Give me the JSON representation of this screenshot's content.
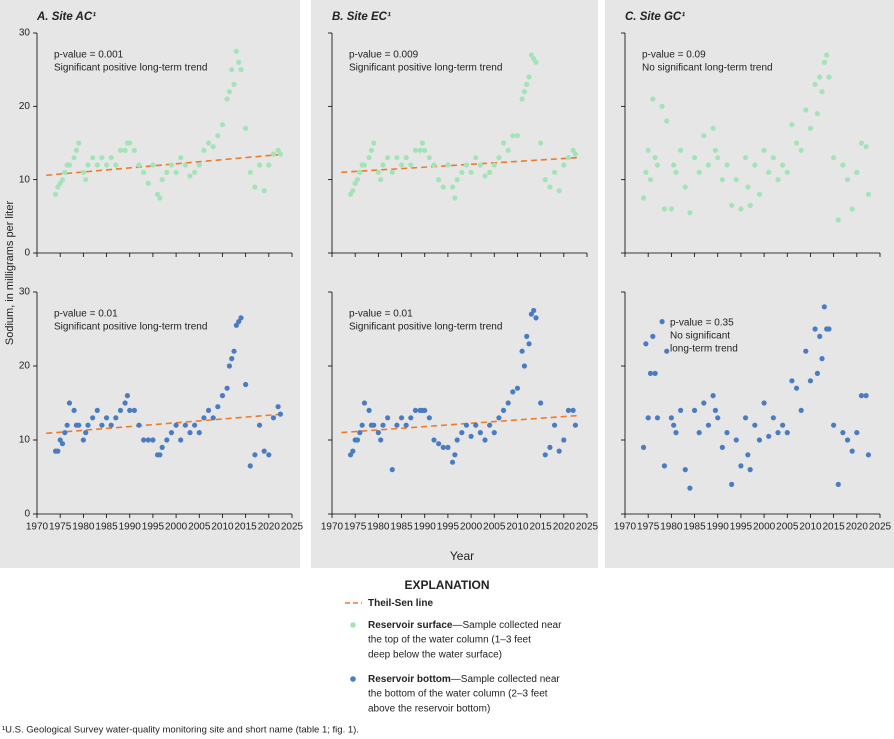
{
  "chart_data": [
    {
      "type": "scatter",
      "title": "A. Site AC¹",
      "annotation": [
        "p-value = 0.001",
        "Significant positive long-term trend"
      ],
      "xlim": [
        1970,
        2025
      ],
      "ylim": [
        0,
        30
      ],
      "xticks": [
        1970,
        1975,
        1980,
        1985,
        1990,
        1995,
        2000,
        2005,
        2010,
        2015,
        2020,
        2025
      ],
      "yticks": [
        0,
        10,
        20,
        30
      ],
      "trend": {
        "color": "#f07a28",
        "x": [
          1972,
          2022
        ],
        "values": [
          10.6,
          13.4
        ]
      },
      "series": [
        {
          "color": "#a3e4b7",
          "x": [
            1974,
            1974.5,
            1975,
            1975.5,
            1976,
            1976.5,
            1977,
            1978,
            1978.5,
            1979,
            1980,
            1980.5,
            1981,
            1982,
            1983,
            1984,
            1985,
            1986,
            1987,
            1988,
            1989,
            1989.5,
            1990,
            1991,
            1992,
            1993,
            1994,
            1995,
            1996,
            1996.5,
            1997,
            1998,
            1999,
            2000,
            2001,
            2002,
            2003,
            2004,
            2005,
            2006,
            2007,
            2008,
            2009,
            2010,
            2011,
            2011.5,
            2012,
            2012.5,
            2013,
            2013.5,
            2014,
            2015,
            2016,
            2017,
            2018,
            2019,
            2020,
            2021,
            2022,
            2022.5
          ],
          "values": [
            8,
            9,
            9.5,
            10,
            11,
            12,
            12,
            13,
            14,
            15,
            11,
            10,
            12,
            13,
            12,
            13,
            12,
            13,
            12,
            14,
            14,
            15,
            15,
            14,
            12,
            11,
            9.5,
            12,
            8,
            7.5,
            10,
            11,
            12,
            11,
            13,
            12,
            10.5,
            11,
            12,
            14,
            15,
            14.5,
            16,
            17.5,
            21,
            22,
            25,
            23,
            27.5,
            26,
            25,
            17,
            11,
            9,
            12,
            8.5,
            12,
            13.5,
            14,
            13.5
          ]
        }
      ]
    },
    {
      "type": "scatter",
      "title": "B. Site EC¹",
      "annotation": [
        "p-value = 0.009",
        "Significant positive  long-term trend"
      ],
      "xlim": [
        1970,
        2025
      ],
      "ylim": [
        0,
        30
      ],
      "xticks": [
        1970,
        1975,
        1980,
        1985,
        1990,
        1995,
        2000,
        2005,
        2010,
        2015,
        2020,
        2025
      ],
      "yticks": [
        0,
        10,
        20,
        30
      ],
      "trend": {
        "color": "#f07a28",
        "x": [
          1972,
          2023
        ],
        "values": [
          11,
          13
        ]
      },
      "series": [
        {
          "color": "#a3e4b7",
          "x": [
            1974,
            1974.5,
            1975,
            1975.5,
            1976,
            1976.5,
            1977,
            1978,
            1978.5,
            1979,
            1980,
            1980.5,
            1981,
            1982,
            1983,
            1984,
            1985,
            1986,
            1987,
            1988,
            1989,
            1989.5,
            1990,
            1991,
            1992,
            1993,
            1994,
            1995,
            1996,
            1996.5,
            1997,
            1998,
            1999,
            2000,
            2001,
            2002,
            2003,
            2004,
            2005,
            2006,
            2007,
            2008,
            2009,
            2010,
            2011,
            2011.5,
            2012,
            2012.5,
            2013,
            2013.5,
            2014,
            2015,
            2016,
            2017,
            2018,
            2019,
            2020,
            2021,
            2022,
            2022.5
          ],
          "values": [
            8,
            8.5,
            9.5,
            10,
            11,
            12,
            12,
            13,
            14,
            15,
            11,
            10,
            12,
            13,
            11,
            13,
            12,
            13,
            12,
            14,
            14,
            15,
            14,
            13,
            12,
            10,
            9,
            12,
            9,
            7.5,
            10,
            11,
            12,
            11,
            13,
            12,
            10.5,
            11,
            12,
            13,
            15,
            14,
            16,
            16,
            21,
            22,
            23,
            24,
            27,
            26.5,
            26,
            15,
            10,
            9,
            11,
            8.5,
            12,
            13,
            14,
            13.5
          ]
        }
      ]
    },
    {
      "type": "scatter",
      "title": "C. Site GC¹",
      "annotation": [
        "p-value = 0.09",
        "No significant long-term trend"
      ],
      "xlim": [
        1970,
        2025
      ],
      "ylim": [
        0,
        30
      ],
      "xticks": [
        1970,
        1975,
        1980,
        1985,
        1990,
        1995,
        2000,
        2005,
        2010,
        2015,
        2020,
        2025
      ],
      "yticks": [
        0,
        10,
        20,
        30
      ],
      "series": [
        {
          "color": "#a3e4b7",
          "x": [
            1974,
            1974.5,
            1975,
            1975.5,
            1976,
            1976.5,
            1977,
            1978,
            1978.5,
            1979,
            1980,
            1980.5,
            1981,
            1982,
            1983,
            1984,
            1985,
            1986,
            1987,
            1988,
            1989,
            1989.5,
            1990,
            1991,
            1992,
            1993,
            1994,
            1995,
            1996,
            1996.5,
            1997,
            1998,
            1999,
            2000,
            2001,
            2002,
            2003,
            2004,
            2005,
            2006,
            2007,
            2008,
            2009,
            2010,
            2011,
            2011.5,
            2012,
            2012.5,
            2013,
            2013.5,
            2014,
            2015,
            2016,
            2017,
            2018,
            2019,
            2020,
            2021,
            2022,
            2022.5
          ],
          "values": [
            7.5,
            11,
            14,
            10,
            21,
            13,
            12,
            20,
            6,
            18,
            6,
            12,
            11,
            14,
            9,
            5.5,
            13,
            11,
            16,
            12,
            17,
            14,
            13,
            10,
            12,
            6.5,
            10,
            6,
            13,
            9,
            6.5,
            12,
            8,
            14,
            11,
            13,
            10,
            12,
            11,
            17.5,
            15,
            14,
            19.5,
            17,
            23,
            19,
            24,
            22,
            26,
            27,
            24,
            13,
            4.5,
            12,
            10,
            6,
            11,
            15,
            14.5,
            8
          ]
        }
      ]
    },
    {
      "type": "scatter",
      "annotation": [
        "p-value = 0.01",
        "Significant positive long-term trend"
      ],
      "xlim": [
        1970,
        2025
      ],
      "ylim": [
        0,
        30
      ],
      "xticks": [
        1970,
        1975,
        1980,
        1985,
        1990,
        1995,
        2000,
        2005,
        2010,
        2015,
        2020,
        2025
      ],
      "yticks": [
        0,
        10,
        20,
        30
      ],
      "trend": {
        "color": "#f07a28",
        "x": [
          1972,
          2023
        ],
        "values": [
          10.9,
          13.5
        ]
      },
      "series": [
        {
          "color": "#4a7cc2",
          "x": [
            1974,
            1974.5,
            1975,
            1975.5,
            1976,
            1976.5,
            1977,
            1978,
            1978.5,
            1979,
            1980,
            1980.5,
            1981,
            1982,
            1983,
            1984,
            1985,
            1986,
            1987,
            1988,
            1989,
            1989.5,
            1990,
            1991,
            1992,
            1993,
            1994,
            1995,
            1996,
            1996.5,
            1997,
            1998,
            1999,
            2000,
            2001,
            2002,
            2003,
            2004,
            2005,
            2006,
            2007,
            2008,
            2009,
            2010,
            2011,
            2011.5,
            2012,
            2012.5,
            2013,
            2013.5,
            2014,
            2015,
            2016,
            2017,
            2018,
            2019,
            2020,
            2021,
            2022,
            2022.5
          ],
          "values": [
            8.5,
            8.5,
            10,
            9.5,
            11,
            12,
            15,
            14,
            12,
            12,
            10,
            11,
            12,
            13,
            14,
            12,
            13,
            12,
            13,
            14,
            15,
            16,
            14,
            14,
            12,
            10,
            10,
            10,
            8,
            8,
            9,
            10,
            11,
            12,
            10,
            12,
            11,
            12,
            11,
            13,
            14,
            13,
            14.5,
            16,
            17,
            20,
            21,
            22,
            25.5,
            26,
            26.5,
            17.5,
            6.5,
            8,
            12,
            8.5,
            8,
            13,
            14.5,
            13.5
          ]
        }
      ]
    },
    {
      "type": "scatter",
      "annotation": [
        "p-value = 0.01",
        "Significant positive long-term trend"
      ],
      "xlim": [
        1970,
        2025
      ],
      "ylim": [
        0,
        30
      ],
      "xticks": [
        1970,
        1975,
        1980,
        1985,
        1990,
        1995,
        2000,
        2005,
        2010,
        2015,
        2020,
        2025
      ],
      "yticks": [
        0,
        10,
        20,
        30
      ],
      "trend": {
        "color": "#f07a28",
        "x": [
          1972,
          2023
        ],
        "values": [
          11,
          13.3
        ]
      },
      "series": [
        {
          "color": "#4a7cc2",
          "x": [
            1974,
            1974.5,
            1975,
            1975.5,
            1976,
            1976.5,
            1977,
            1978,
            1978.5,
            1979,
            1980,
            1980.5,
            1981,
            1982,
            1983,
            1984,
            1985,
            1986,
            1987,
            1988,
            1989,
            1989.5,
            1990,
            1991,
            1992,
            1993,
            1994,
            1995,
            1996,
            1996.5,
            1997,
            1998,
            1999,
            2000,
            2001,
            2002,
            2003,
            2004,
            2005,
            2006,
            2007,
            2008,
            2009,
            2010,
            2011,
            2011.5,
            2012,
            2012.5,
            2013,
            2013.5,
            2014,
            2015,
            2016,
            2017,
            2018,
            2019,
            2020,
            2021,
            2022,
            2022.5
          ],
          "values": [
            8,
            8.5,
            10,
            10,
            11,
            12,
            15,
            14,
            12,
            12,
            11,
            10,
            12,
            13,
            6,
            12,
            13,
            12,
            13,
            14,
            14,
            14,
            14,
            13,
            10,
            9.5,
            9,
            9,
            7,
            8,
            10,
            11,
            12,
            10.5,
            12,
            11,
            10,
            12,
            11,
            13,
            14,
            15,
            16.5,
            17,
            22,
            20,
            24,
            23,
            27,
            27.5,
            26.5,
            15,
            8,
            9,
            12,
            8.5,
            10,
            14,
            14,
            12
          ]
        }
      ]
    },
    {
      "type": "scatter",
      "annotation": [
        "p-value = 0.35",
        "No significant",
        "long-term trend"
      ],
      "xlim": [
        1970,
        2025
      ],
      "ylim": [
        0,
        30
      ],
      "xticks": [
        1970,
        1975,
        1980,
        1985,
        1990,
        1995,
        2000,
        2005,
        2010,
        2015,
        2020,
        2025
      ],
      "yticks": [
        0,
        10,
        20,
        30
      ],
      "series": [
        {
          "color": "#4a7cc2",
          "x": [
            1974,
            1974.5,
            1975,
            1975.5,
            1976,
            1976.5,
            1977,
            1978,
            1978.5,
            1979,
            1980,
            1980.5,
            1981,
            1982,
            1983,
            1984,
            1985,
            1986,
            1987,
            1988,
            1989,
            1989.5,
            1990,
            1991,
            1992,
            1993,
            1994,
            1995,
            1996,
            1996.5,
            1997,
            1998,
            1999,
            2000,
            2001,
            2002,
            2003,
            2004,
            2005,
            2006,
            2007,
            2008,
            2009,
            2010,
            2011,
            2011.5,
            2012,
            2012.5,
            2013,
            2013.5,
            2014,
            2015,
            2016,
            2017,
            2018,
            2019,
            2020,
            2021,
            2022,
            2022.5
          ],
          "values": [
            9,
            23,
            13,
            19,
            24,
            19,
            13,
            26,
            6.5,
            22,
            13,
            12,
            11,
            14,
            6,
            3.5,
            14,
            11,
            15,
            12,
            16,
            14,
            13,
            9,
            11,
            4,
            10,
            6.5,
            13,
            8,
            6,
            12,
            10,
            15,
            10.5,
            13,
            11,
            12,
            11,
            18,
            17,
            14,
            22,
            18,
            25,
            19,
            24,
            21,
            28,
            25,
            25,
            12,
            4,
            11,
            10,
            8.5,
            11,
            16,
            16,
            8
          ]
        }
      ]
    }
  ],
  "y_label": "Sodium, in milligrams per liter",
  "x_label": "Year",
  "legend": {
    "title": "EXPLANATION",
    "entries": [
      {
        "label": "Theil-Sen line",
        "color": "#f07a28",
        "lines": []
      },
      {
        "label": "Reservoir surface",
        "color": "#a3e4b7",
        "lines": [
          "—Sample collected near",
          "the top of the water column (1–3 feet",
          "deep below the water surface)"
        ]
      },
      {
        "label": "Reservoir bottom",
        "color": "#4a7cc2",
        "lines": [
          "—Sample collected near",
          "the bottom of the water column (2–3 feet",
          "above the reservoir bottom)"
        ]
      }
    ]
  },
  "footnote": "¹U.S. Geological Survey water-quality monitoring site and short name (table 1; fig. 1)."
}
